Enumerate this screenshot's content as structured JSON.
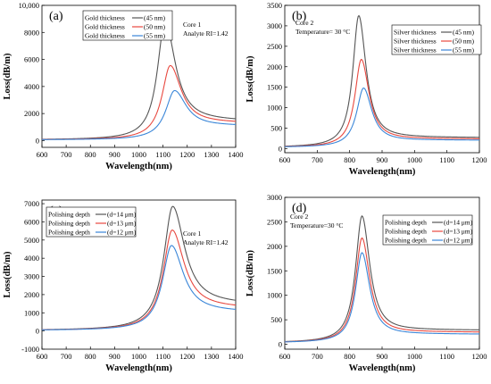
{
  "chart_data": [
    {
      "type": "line",
      "panel_label": "(a)",
      "xlabel": "Wavelength(nm)",
      "ylabel": "Loss(dB/m)",
      "xlim": [
        600,
        1400
      ],
      "ylim": [
        -500,
        10000
      ],
      "xticks": [
        600,
        700,
        800,
        900,
        1000,
        1100,
        1200,
        1300,
        1400
      ],
      "yticks": [
        0,
        2000,
        4000,
        6000,
        8000,
        10000
      ],
      "ytick_labels": [
        "0",
        "2000",
        "4000",
        "6000",
        "8000",
        "10,000"
      ],
      "annotations": [
        "Core 1",
        "Analyte RI=1.42"
      ],
      "legend_position": "top-left",
      "series": [
        {
          "name": "Gold thickness",
          "param": "(45 nm)",
          "color": "#555555",
          "peak_x": 1108,
          "peak_y": 8800,
          "baseline_left": 50,
          "baseline_right": 1380,
          "width_left": 38,
          "width_right": 55
        },
        {
          "name": "Gold thickness",
          "param": "(50 nm)",
          "color": "#e8483f",
          "peak_x": 1130,
          "peak_y": 5550,
          "baseline_left": 50,
          "baseline_right": 1250,
          "width_left": 42,
          "width_right": 60
        },
        {
          "name": "Gold thickness",
          "param": "(55 nm)",
          "color": "#3a86d8",
          "peak_x": 1148,
          "peak_y": 3700,
          "baseline_left": 50,
          "baseline_right": 1050,
          "width_left": 45,
          "width_right": 65
        }
      ]
    },
    {
      "type": "line",
      "panel_label": "(b)",
      "xlabel": "Wavelength(nm)",
      "ylabel": "Loss(dB/m)",
      "xlim": [
        600,
        1200
      ],
      "ylim": [
        -100,
        3500
      ],
      "xticks": [
        600,
        700,
        800,
        900,
        1000,
        1100,
        1200
      ],
      "yticks": [
        0,
        500,
        1000,
        1500,
        2000,
        2500,
        3000,
        3500
      ],
      "annotations": [
        "Core 2",
        "Temperature= 30 °C"
      ],
      "legend_position": "top-right",
      "series": [
        {
          "name": "Silver thickness",
          "param": "(45 nm)",
          "color": "#555555",
          "peak_x": 828,
          "peak_y": 3250,
          "baseline_left": 30,
          "baseline_right": 260,
          "width_left": 22,
          "width_right": 28
        },
        {
          "name": "Silver thickness",
          "param": "(50 nm)",
          "color": "#e8483f",
          "peak_x": 836,
          "peak_y": 2180,
          "baseline_left": 30,
          "baseline_right": 230,
          "width_left": 24,
          "width_right": 30
        },
        {
          "name": "Silver thickness",
          "param": "(55 nm)",
          "color": "#3a86d8",
          "peak_x": 843,
          "peak_y": 1480,
          "baseline_left": 30,
          "baseline_right": 200,
          "width_left": 26,
          "width_right": 32
        }
      ]
    },
    {
      "type": "line",
      "panel_label": "(c)",
      "xlabel": "Wavelength(nm)",
      "ylabel": "Loss(dB/m)",
      "xlim": [
        600,
        1400
      ],
      "ylim": [
        -1000,
        7200
      ],
      "xticks": [
        600,
        700,
        800,
        900,
        1000,
        1100,
        1200,
        1300,
        1400
      ],
      "yticks": [
        -1000,
        0,
        1000,
        2000,
        3000,
        4000,
        5000,
        6000,
        7000
      ],
      "annotations": [
        "Core 1",
        "Analyte RI=1.42"
      ],
      "legend_position": "top-left",
      "series": [
        {
          "name": "Polishing depth",
          "param": "(d=14 μm)",
          "color": "#555555",
          "peak_x": 1140,
          "peak_y": 6850,
          "baseline_left": 30,
          "baseline_right": 1400,
          "width_left": 45,
          "width_right": 65
        },
        {
          "name": "Polishing depth",
          "param": "(d=13 μm)",
          "color": "#e8483f",
          "peak_x": 1138,
          "peak_y": 5550,
          "baseline_left": 30,
          "baseline_right": 1200,
          "width_left": 45,
          "width_right": 65
        },
        {
          "name": "Polishing depth",
          "param": "(d=12 μm)",
          "color": "#3a86d8",
          "peak_x": 1135,
          "peak_y": 4700,
          "baseline_left": 30,
          "baseline_right": 1000,
          "width_left": 45,
          "width_right": 65
        }
      ]
    },
    {
      "type": "line",
      "panel_label": "(d)",
      "xlabel": "Wavelength(nm)",
      "ylabel": "Loss(dB/m)",
      "xlim": [
        600,
        1200
      ],
      "ylim": [
        -100,
        3000
      ],
      "xticks": [
        600,
        700,
        800,
        900,
        1000,
        1100,
        1200
      ],
      "yticks": [
        0,
        500,
        1000,
        1500,
        2000,
        2500,
        3000
      ],
      "annotations": [
        "Core 2",
        "Temperature=30 °C"
      ],
      "legend_position": "top-right",
      "series": [
        {
          "name": "Polishing depth",
          "param": "(d=14 μm)",
          "color": "#555555",
          "peak_x": 838,
          "peak_y": 2620,
          "baseline_left": 30,
          "baseline_right": 280,
          "width_left": 24,
          "width_right": 30
        },
        {
          "name": "Polishing depth",
          "param": "(d=13 μm)",
          "color": "#e8483f",
          "peak_x": 838,
          "peak_y": 2170,
          "baseline_left": 30,
          "baseline_right": 240,
          "width_left": 24,
          "width_right": 30
        },
        {
          "name": "Polishing depth",
          "param": "(d=12 μm)",
          "color": "#3a86d8",
          "peak_x": 838,
          "peak_y": 1870,
          "baseline_left": 30,
          "baseline_right": 200,
          "width_left": 24,
          "width_right": 30
        }
      ]
    }
  ]
}
